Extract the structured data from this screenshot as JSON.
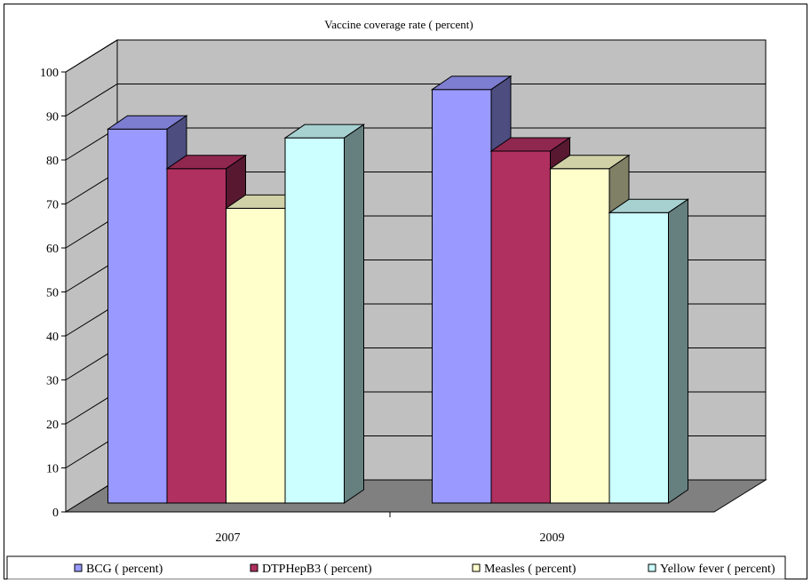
{
  "chart_data": {
    "type": "bar",
    "title": "Vaccine coverage rate ( percent)",
    "categories": [
      "2007",
      "2009"
    ],
    "series": [
      {
        "name": "BCG ( percent)",
        "color": "#9999ff",
        "values": [
          85,
          94
        ]
      },
      {
        "name": "DTPHepB3 ( percent)",
        "color": "#b03060",
        "values": [
          76,
          80
        ]
      },
      {
        "name": "Measles ( percent)",
        "color": "#ffffcc",
        "values": [
          67,
          76
        ]
      },
      {
        "name": "Yellow fever ( percent)",
        "color": "#ccffff",
        "values": [
          83,
          66
        ]
      }
    ],
    "ylim": [
      0,
      100
    ],
    "yticks": [
      0,
      10,
      20,
      30,
      40,
      50,
      60,
      70,
      80,
      90,
      100
    ],
    "xlabel": "",
    "ylabel": "",
    "grid": true,
    "legend": "bottom",
    "three_d": true,
    "wall_color": "#c0c0c0",
    "floor_color": "#808080"
  }
}
